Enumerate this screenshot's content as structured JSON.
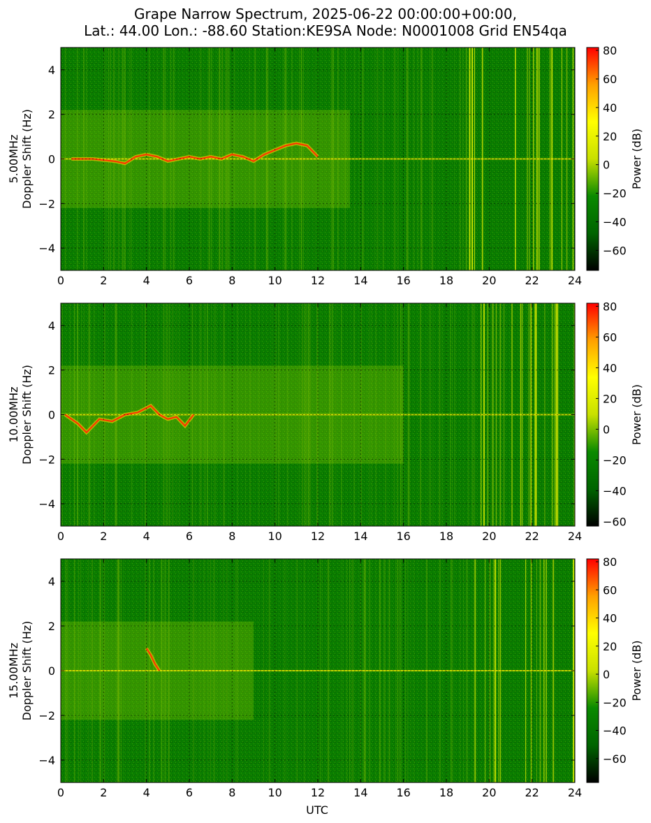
{
  "title": {
    "line1": "Grape Narrow Spectrum, 2025-06-22 00:00:00+00:00,",
    "line2": "Lat.: 44.00 Lon.: -88.60 Station:KE9SA Node: N0001008 Grid EN54qa"
  },
  "xlabel": "UTC",
  "colorbar_label": "Power (dB)",
  "colors": {
    "cmap": [
      "#000000",
      "#006400",
      "#0a8a00",
      "#c8e000",
      "#ffff00",
      "#ffa000",
      "#ff0000"
    ],
    "grid": "#000000"
  },
  "chart_data": [
    {
      "type": "heatmap",
      "panel": "5.00MHz",
      "ylabel_line1": "5.00MHz",
      "ylabel_line2": "Doppler Shift (Hz)",
      "xlim": [
        0,
        24
      ],
      "ylim": [
        -5,
        5
      ],
      "xticks": [
        "0",
        "2",
        "4",
        "6",
        "8",
        "10",
        "12",
        "14",
        "16",
        "18",
        "20",
        "22",
        "24"
      ],
      "yticks": [
        "4",
        "2",
        "0",
        "−2",
        "−4"
      ],
      "clim": [
        -74,
        82
      ],
      "cticks": [
        "80",
        "60",
        "40",
        "20",
        "0",
        "−20",
        "−40",
        "−60"
      ],
      "grid": true,
      "carrier_trace": {
        "t": [
          0.5,
          1.5,
          2.5,
          3.0,
          3.5,
          4.0,
          4.5,
          5.0,
          5.5,
          6.0,
          6.5,
          7.0,
          7.5,
          8.0,
          8.5,
          9.0,
          9.5,
          10.0,
          10.5,
          11.0,
          11.5,
          12.0
        ],
        "f": [
          0.0,
          0.0,
          -0.1,
          -0.2,
          0.1,
          0.2,
          0.1,
          -0.1,
          0.0,
          0.1,
          0.0,
          0.1,
          0.0,
          0.2,
          0.1,
          -0.1,
          0.2,
          0.4,
          0.6,
          0.7,
          0.6,
          0.1
        ]
      },
      "active_until": 13.5,
      "interference_from": 19.0
    },
    {
      "type": "heatmap",
      "panel": "10.00MHz",
      "ylabel_line1": "10.00MHz",
      "ylabel_line2": "Doppler Shift (Hz)",
      "xlim": [
        0,
        24
      ],
      "ylim": [
        -5,
        5
      ],
      "xticks": [
        "0",
        "2",
        "4",
        "6",
        "8",
        "10",
        "12",
        "14",
        "16",
        "18",
        "20",
        "22",
        "24"
      ],
      "yticks": [
        "4",
        "2",
        "0",
        "−2",
        "−4"
      ],
      "clim": [
        -63,
        82
      ],
      "cticks": [
        "80",
        "60",
        "40",
        "20",
        "0",
        "−20",
        "−40",
        "−60"
      ],
      "grid": true,
      "carrier_trace": {
        "t": [
          0.2,
          0.8,
          1.2,
          1.8,
          2.4,
          3.0,
          3.6,
          4.2,
          4.6,
          5.0,
          5.4,
          5.8,
          6.2
        ],
        "f": [
          0.0,
          -0.4,
          -0.8,
          -0.2,
          -0.3,
          0.0,
          0.1,
          0.4,
          0.0,
          -0.2,
          -0.1,
          -0.5,
          0.0
        ]
      },
      "active_until": 16.0,
      "interference_from": 19.3
    },
    {
      "type": "heatmap",
      "panel": "15.00MHz",
      "ylabel_line1": "15.00MHz",
      "ylabel_line2": "Doppler Shift (Hz)",
      "xlim": [
        0,
        24
      ],
      "ylim": [
        -5,
        5
      ],
      "xticks": [
        "0",
        "2",
        "4",
        "6",
        "8",
        "10",
        "12",
        "14",
        "16",
        "18",
        "20",
        "22",
        "24"
      ],
      "yticks": [
        "4",
        "2",
        "0",
        "−2",
        "−4"
      ],
      "clim": [
        -77,
        82
      ],
      "cticks": [
        "80",
        "60",
        "40",
        "20",
        "0",
        "−20",
        "−40",
        "−60"
      ],
      "grid": true,
      "carrier_trace": {
        "t": [
          4.0,
          4.2,
          4.4,
          4.6
        ],
        "f": [
          1.0,
          0.7,
          0.3,
          0.0
        ]
      },
      "active_until": 9.0,
      "interference_from": 19.3
    }
  ]
}
